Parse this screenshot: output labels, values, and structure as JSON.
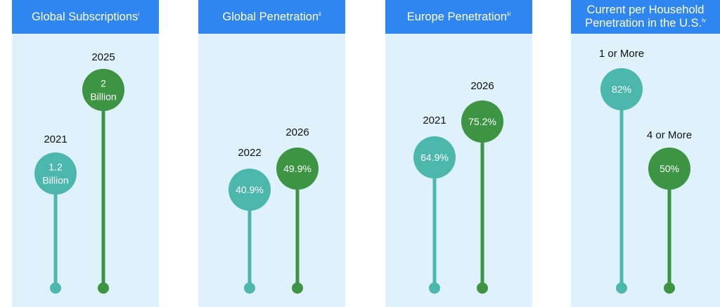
{
  "colors": {
    "header": "#2f86f0",
    "panel_bg": "#dff1fb",
    "teal": "#4bb7ad",
    "green": "#3d9442"
  },
  "chart_data": [
    {
      "type": "lollipop",
      "title": "Global Subscriptions",
      "title_mark": "i",
      "series": [
        {
          "label": "2021",
          "value_text": [
            "1.2",
            "Billion"
          ],
          "value": 1.2,
          "color": "teal"
        },
        {
          "label": "2025",
          "value_text": [
            "2",
            "Billion"
          ],
          "value": 2,
          "color": "green"
        }
      ]
    },
    {
      "type": "lollipop",
      "title": "Global Penetration",
      "title_mark": "ii",
      "series": [
        {
          "label": "2022",
          "value_text": [
            "40.9%"
          ],
          "value": 40.9,
          "color": "teal"
        },
        {
          "label": "2026",
          "value_text": [
            "49.9%"
          ],
          "value": 49.9,
          "color": "green"
        }
      ]
    },
    {
      "type": "lollipop",
      "title": "Europe Penetration",
      "title_mark": "iii",
      "series": [
        {
          "label": "2021",
          "value_text": [
            "64.9%"
          ],
          "value": 64.9,
          "color": "teal"
        },
        {
          "label": "2026",
          "value_text": [
            "75.2%"
          ],
          "value": 75.2,
          "color": "green"
        }
      ]
    },
    {
      "type": "lollipop",
      "title": "Current per Household",
      "title_line2": "Penetration in the U.S.",
      "title_mark": "iv",
      "series": [
        {
          "label": "1 or More",
          "value_text": [
            "82%"
          ],
          "value": 82,
          "color": "teal"
        },
        {
          "label": "4 or More",
          "value_text": [
            "50%"
          ],
          "value": 50,
          "color": "green"
        }
      ]
    }
  ]
}
